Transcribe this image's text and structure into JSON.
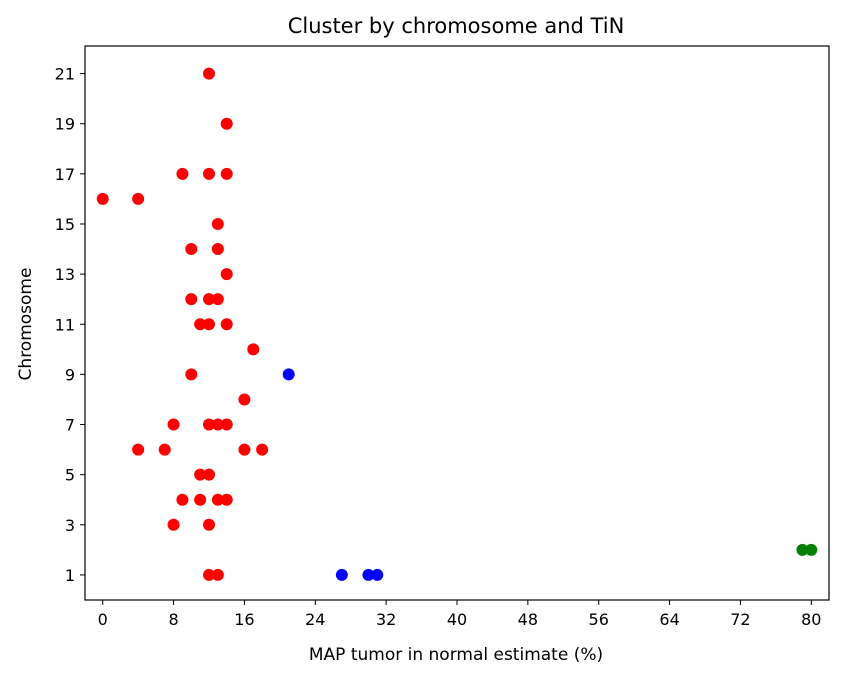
{
  "chart_data": {
    "type": "scatter",
    "title": "Cluster by chromosome and TiN",
    "xlabel": "MAP tumor in normal estimate (%)",
    "ylabel": "Chromosome",
    "xlim": [
      -2,
      82
    ],
    "ylim": [
      0,
      22.1
    ],
    "x_ticks": [
      0,
      8,
      16,
      24,
      32,
      40,
      48,
      56,
      64,
      72,
      80
    ],
    "y_ticks": [
      1,
      3,
      5,
      7,
      9,
      11,
      13,
      15,
      17,
      19,
      21
    ],
    "grid": false,
    "series": [
      {
        "color": "#ff0000",
        "points": [
          [
            12,
            1
          ],
          [
            13,
            1
          ],
          [
            8,
            3
          ],
          [
            12,
            3
          ],
          [
            9,
            4
          ],
          [
            11,
            4
          ],
          [
            13,
            4
          ],
          [
            14,
            4
          ],
          [
            11,
            5
          ],
          [
            12,
            5
          ],
          [
            4,
            6
          ],
          [
            7,
            6
          ],
          [
            16,
            6
          ],
          [
            18,
            6
          ],
          [
            8,
            7
          ],
          [
            12,
            7
          ],
          [
            13,
            7
          ],
          [
            14,
            7
          ],
          [
            16,
            8
          ],
          [
            10,
            9
          ],
          [
            17,
            10
          ],
          [
            11,
            11
          ],
          [
            12,
            11
          ],
          [
            14,
            11
          ],
          [
            10,
            12
          ],
          [
            12,
            12
          ],
          [
            13,
            12
          ],
          [
            14,
            13
          ],
          [
            10,
            14
          ],
          [
            13,
            14
          ],
          [
            13,
            15
          ],
          [
            0,
            16
          ],
          [
            4,
            16
          ],
          [
            9,
            17
          ],
          [
            12,
            17
          ],
          [
            14,
            17
          ],
          [
            14,
            19
          ],
          [
            12,
            21
          ]
        ]
      },
      {
        "color": "#0000ff",
        "points": [
          [
            21,
            9
          ],
          [
            27,
            1
          ],
          [
            30,
            1
          ],
          [
            31,
            1
          ]
        ]
      },
      {
        "color": "#008000",
        "points": [
          [
            79,
            2
          ],
          [
            80,
            2
          ]
        ]
      }
    ]
  }
}
